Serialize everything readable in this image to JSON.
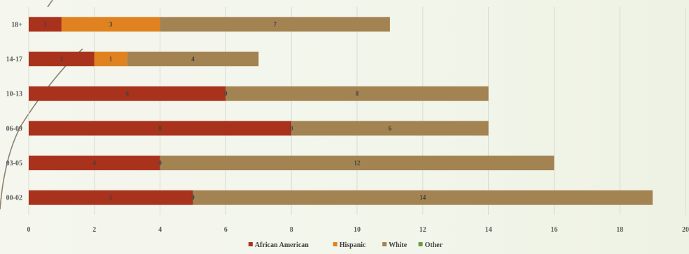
{
  "chart_data": {
    "type": "bar",
    "orientation": "horizontal",
    "stacked": true,
    "categories": [
      "00-02",
      "03-05",
      "06-09",
      "10-13",
      "14-17",
      "18+"
    ],
    "series": [
      {
        "name": "African American",
        "values": [
          5,
          4,
          8,
          6,
          2,
          1
        ],
        "labels": [
          "5",
          "4",
          "8",
          "6",
          "2",
          "1"
        ],
        "color": "#a8321c"
      },
      {
        "name": "Hispanic",
        "values": [
          0,
          0,
          0,
          0,
          1,
          3
        ],
        "labels": [
          "0",
          "0",
          "0",
          "0",
          "1",
          "3"
        ],
        "color": "#e0821f"
      },
      {
        "name": "White",
        "values": [
          14,
          12,
          6,
          8,
          4,
          7
        ],
        "labels": [
          "14",
          "12",
          "6",
          "8",
          "4",
          "7"
        ],
        "color": "#a38352"
      },
      {
        "name": "Other",
        "values": [
          0,
          0,
          0,
          0,
          0,
          0
        ],
        "labels": [],
        "color": "#6b9a47"
      }
    ],
    "xlim": [
      0,
      20
    ],
    "xticks": [
      0,
      2,
      4,
      6,
      8,
      10,
      12,
      14,
      16,
      18,
      20
    ],
    "title": "",
    "xlabel": "",
    "ylabel": "",
    "grid": "vertical",
    "legend_position": "bottom"
  }
}
